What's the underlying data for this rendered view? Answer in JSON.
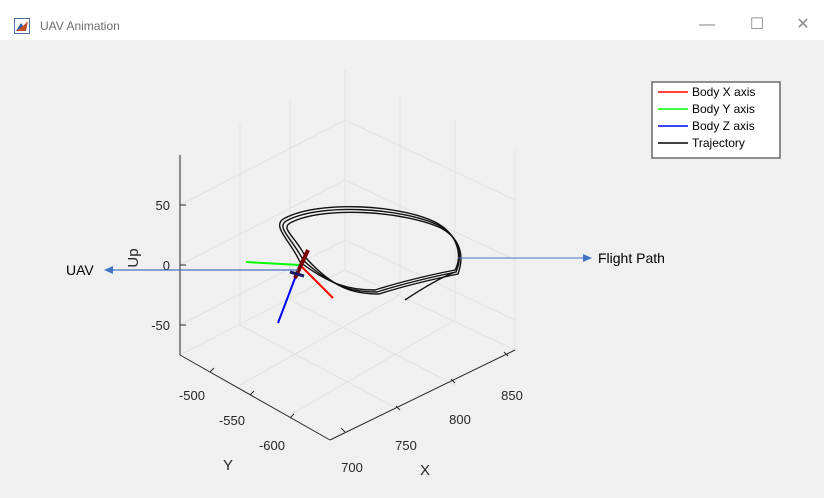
{
  "window": {
    "title": "UAV Animation",
    "controls": {
      "minimize": "—",
      "maximize": "☐",
      "close": "✕"
    }
  },
  "chart_data": {
    "type": "line",
    "dimensions": "3d",
    "xlabel": "X",
    "ylabel": "Y",
    "zlabel": "Up",
    "x_ticks": [
      "700",
      "750",
      "800",
      "850"
    ],
    "y_ticks": [
      "-500",
      "-550",
      "-600"
    ],
    "z_ticks": [
      "50",
      "0",
      "-50"
    ],
    "grid": true,
    "legend_position": "top-right",
    "legend": [
      {
        "name": "Body X axis",
        "color": "#ff0000"
      },
      {
        "name": "Body Y axis",
        "color": "#00ff00"
      },
      {
        "name": "Body Z axis",
        "color": "#0000ff"
      },
      {
        "name": "Trajectory",
        "color": "#000000"
      }
    ]
  },
  "annotations": {
    "uav_label": "UAV",
    "flight_path_label": "Flight Path",
    "arrow_color": "#4472c4"
  }
}
